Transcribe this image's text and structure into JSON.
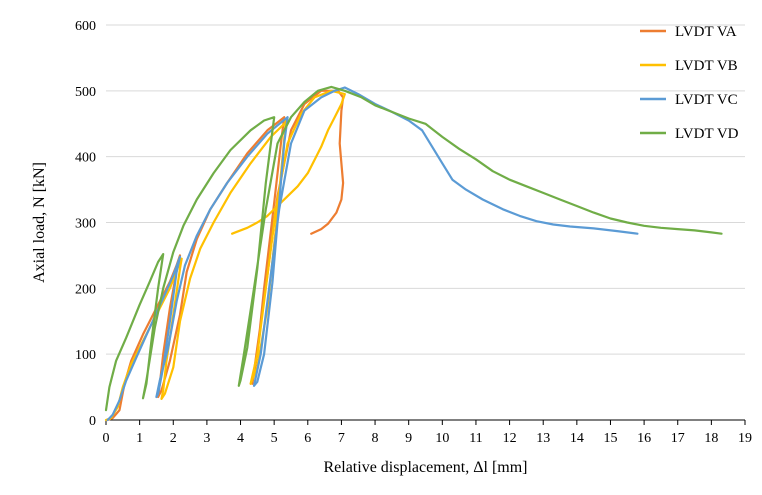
{
  "chart_data": {
    "type": "line",
    "title": "",
    "xlabel": "Relative displacement, Δl   [mm]",
    "ylabel": "Axial load, N   [kN]",
    "xlim": [
      0,
      19
    ],
    "ylim": [
      0,
      600
    ],
    "x_ticks": [
      0,
      1,
      2,
      3,
      4,
      5,
      6,
      7,
      8,
      9,
      10,
      11,
      12,
      13,
      14,
      15,
      16,
      17,
      18,
      19
    ],
    "y_ticks": [
      0,
      100,
      200,
      300,
      400,
      500,
      600
    ],
    "grid": "horizontal",
    "legend_position": "top-right",
    "series": [
      {
        "name": "LVDT VA",
        "color": "#ED7D31",
        "points": [
          [
            0.05,
            0
          ],
          [
            0.2,
            3
          ],
          [
            0.4,
            15
          ],
          [
            0.55,
            55
          ],
          [
            0.75,
            90
          ],
          [
            1.1,
            130
          ],
          [
            1.5,
            170
          ],
          [
            1.9,
            210
          ],
          [
            2.1,
            235
          ],
          [
            2.2,
            250
          ],
          [
            2.15,
            240
          ],
          [
            1.9,
            170
          ],
          [
            1.7,
            100
          ],
          [
            1.6,
            55
          ],
          [
            1.55,
            35
          ],
          [
            1.65,
            45
          ],
          [
            1.9,
            90
          ],
          [
            2.2,
            160
          ],
          [
            2.4,
            225
          ],
          [
            2.7,
            275
          ],
          [
            3.1,
            320
          ],
          [
            3.6,
            360
          ],
          [
            4.2,
            405
          ],
          [
            4.8,
            440
          ],
          [
            5.3,
            460
          ],
          [
            5.3,
            460
          ],
          [
            5.2,
            420
          ],
          [
            5.0,
            330
          ],
          [
            4.7,
            200
          ],
          [
            4.5,
            100
          ],
          [
            4.35,
            55
          ],
          [
            4.5,
            110
          ],
          [
            4.8,
            220
          ],
          [
            5.1,
            340
          ],
          [
            5.5,
            440
          ],
          [
            5.9,
            480
          ],
          [
            6.4,
            500
          ],
          [
            6.9,
            500
          ],
          [
            7.05,
            490
          ],
          [
            7.0,
            470
          ],
          [
            6.95,
            420
          ],
          [
            7.0,
            390
          ],
          [
            7.05,
            360
          ],
          [
            7.0,
            335
          ],
          [
            6.85,
            315
          ],
          [
            6.6,
            298
          ],
          [
            6.4,
            290
          ],
          [
            6.1,
            283
          ]
        ]
      },
      {
        "name": "LVDT VB",
        "color": "#FFC000",
        "points": [
          [
            0,
            0
          ],
          [
            0.15,
            3
          ],
          [
            0.35,
            20
          ],
          [
            0.5,
            50
          ],
          [
            0.75,
            85
          ],
          [
            1.1,
            120
          ],
          [
            1.5,
            160
          ],
          [
            1.9,
            200
          ],
          [
            2.2,
            240
          ],
          [
            2.25,
            245
          ],
          [
            2.2,
            230
          ],
          [
            2.0,
            160
          ],
          [
            1.8,
            90
          ],
          [
            1.7,
            45
          ],
          [
            1.65,
            32
          ],
          [
            1.75,
            40
          ],
          [
            2.0,
            80
          ],
          [
            2.2,
            150
          ],
          [
            2.5,
            215
          ],
          [
            2.8,
            260
          ],
          [
            3.2,
            300
          ],
          [
            3.7,
            345
          ],
          [
            4.3,
            390
          ],
          [
            4.9,
            430
          ],
          [
            5.4,
            455
          ],
          [
            5.35,
            455
          ],
          [
            5.25,
            400
          ],
          [
            5.05,
            290
          ],
          [
            4.8,
            170
          ],
          [
            4.5,
            80
          ],
          [
            4.3,
            55
          ],
          [
            4.5,
            100
          ],
          [
            4.75,
            200
          ],
          [
            5.05,
            320
          ],
          [
            5.4,
            420
          ],
          [
            5.8,
            465
          ],
          [
            6.2,
            490
          ],
          [
            6.7,
            500
          ],
          [
            7.1,
            495
          ],
          [
            7.0,
            480
          ],
          [
            6.8,
            460
          ],
          [
            6.6,
            440
          ],
          [
            6.4,
            415
          ],
          [
            6.2,
            395
          ],
          [
            6.0,
            375
          ],
          [
            5.7,
            355
          ],
          [
            5.4,
            340
          ],
          [
            5.1,
            325
          ],
          [
            4.8,
            310
          ],
          [
            4.5,
            300
          ],
          [
            4.2,
            292
          ],
          [
            3.9,
            286
          ],
          [
            3.75,
            283
          ]
        ]
      },
      {
        "name": "LVDT VC",
        "color": "#5B9BD5",
        "points": [
          [
            0.05,
            0
          ],
          [
            0.2,
            8
          ],
          [
            0.4,
            30
          ],
          [
            0.6,
            60
          ],
          [
            0.9,
            95
          ],
          [
            1.3,
            140
          ],
          [
            1.7,
            185
          ],
          [
            2.0,
            220
          ],
          [
            2.2,
            248
          ],
          [
            2.1,
            225
          ],
          [
            1.9,
            150
          ],
          [
            1.7,
            80
          ],
          [
            1.55,
            40
          ],
          [
            1.5,
            35
          ],
          [
            1.6,
            60
          ],
          [
            1.85,
            110
          ],
          [
            2.1,
            180
          ],
          [
            2.35,
            235
          ],
          [
            2.7,
            280
          ],
          [
            3.1,
            320
          ],
          [
            3.6,
            360
          ],
          [
            4.2,
            400
          ],
          [
            4.8,
            435
          ],
          [
            5.4,
            460
          ],
          [
            5.4,
            460
          ],
          [
            5.3,
            420
          ],
          [
            5.15,
            330
          ],
          [
            4.95,
            210
          ],
          [
            4.7,
            100
          ],
          [
            4.5,
            58
          ],
          [
            4.4,
            52
          ],
          [
            4.6,
            100
          ],
          [
            4.85,
            200
          ],
          [
            5.15,
            320
          ],
          [
            5.5,
            420
          ],
          [
            5.9,
            470
          ],
          [
            6.4,
            490
          ],
          [
            6.8,
            500
          ],
          [
            7.1,
            505
          ],
          [
            7.5,
            495
          ],
          [
            8.0,
            480
          ],
          [
            8.5,
            468
          ],
          [
            9.0,
            455
          ],
          [
            9.4,
            440
          ],
          [
            9.7,
            415
          ],
          [
            10.0,
            390
          ],
          [
            10.3,
            365
          ],
          [
            10.7,
            350
          ],
          [
            11.2,
            335
          ],
          [
            11.8,
            320
          ],
          [
            12.3,
            310
          ],
          [
            12.8,
            302
          ],
          [
            13.3,
            297
          ],
          [
            13.8,
            294
          ],
          [
            14.5,
            291
          ],
          [
            15.2,
            287
          ],
          [
            15.8,
            283
          ]
        ]
      },
      {
        "name": "LVDT VD",
        "color": "#70AD47",
        "points": [
          [
            0,
            15
          ],
          [
            0.1,
            50
          ],
          [
            0.3,
            90
          ],
          [
            0.6,
            125
          ],
          [
            1.0,
            175
          ],
          [
            1.3,
            210
          ],
          [
            1.55,
            240
          ],
          [
            1.7,
            252
          ],
          [
            1.55,
            200
          ],
          [
            1.35,
            120
          ],
          [
            1.2,
            55
          ],
          [
            1.1,
            33
          ],
          [
            1.2,
            60
          ],
          [
            1.45,
            140
          ],
          [
            1.7,
            200
          ],
          [
            2.0,
            255
          ],
          [
            2.3,
            295
          ],
          [
            2.7,
            335
          ],
          [
            3.2,
            375
          ],
          [
            3.7,
            410
          ],
          [
            4.3,
            440
          ],
          [
            4.7,
            455
          ],
          [
            5.0,
            460
          ],
          [
            4.95,
            440
          ],
          [
            4.75,
            360
          ],
          [
            4.5,
            230
          ],
          [
            4.2,
            110
          ],
          [
            4.0,
            60
          ],
          [
            3.95,
            52
          ],
          [
            4.1,
            100
          ],
          [
            4.4,
            200
          ],
          [
            4.75,
            320
          ],
          [
            5.1,
            420
          ],
          [
            5.5,
            460
          ],
          [
            5.9,
            483
          ],
          [
            6.3,
            500
          ],
          [
            6.7,
            506
          ],
          [
            7.1,
            500
          ],
          [
            7.6,
            490
          ],
          [
            8.0,
            478
          ],
          [
            8.5,
            468
          ],
          [
            9.0,
            458
          ],
          [
            9.5,
            450
          ],
          [
            10.0,
            430
          ],
          [
            10.5,
            412
          ],
          [
            11.0,
            396
          ],
          [
            11.5,
            378
          ],
          [
            12.0,
            365
          ],
          [
            12.5,
            355
          ],
          [
            13.0,
            345
          ],
          [
            13.5,
            335
          ],
          [
            14.0,
            325
          ],
          [
            14.5,
            315
          ],
          [
            15.0,
            306
          ],
          [
            15.5,
            300
          ],
          [
            16.0,
            295
          ],
          [
            16.5,
            292
          ],
          [
            17.0,
            290
          ],
          [
            17.5,
            288
          ],
          [
            18.0,
            285
          ],
          [
            18.3,
            283
          ]
        ]
      }
    ]
  }
}
